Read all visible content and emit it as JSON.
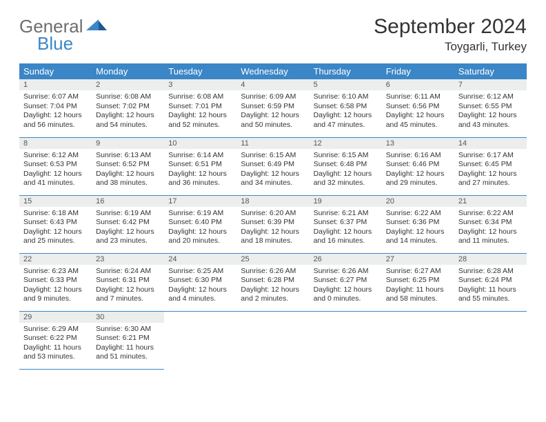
{
  "brand": {
    "word1": "General",
    "word2": "Blue"
  },
  "title": "September 2024",
  "location": "Toygarli, Turkey",
  "colors": {
    "accent": "#3b86c6",
    "header_text": "#ffffff",
    "daynum_bg": "#eceded",
    "text": "#333333",
    "logo_gray": "#6d6e71"
  },
  "typography": {
    "title_fontsize": 30,
    "location_fontsize": 17,
    "dayheader_fontsize": 13,
    "body_fontsize": 10.5
  },
  "weekdays": [
    "Sunday",
    "Monday",
    "Tuesday",
    "Wednesday",
    "Thursday",
    "Friday",
    "Saturday"
  ],
  "weeks": [
    [
      {
        "n": "1",
        "sr": "Sunrise: 6:07 AM",
        "ss": "Sunset: 7:04 PM",
        "d1": "Daylight: 12 hours",
        "d2": "and 56 minutes."
      },
      {
        "n": "2",
        "sr": "Sunrise: 6:08 AM",
        "ss": "Sunset: 7:02 PM",
        "d1": "Daylight: 12 hours",
        "d2": "and 54 minutes."
      },
      {
        "n": "3",
        "sr": "Sunrise: 6:08 AM",
        "ss": "Sunset: 7:01 PM",
        "d1": "Daylight: 12 hours",
        "d2": "and 52 minutes."
      },
      {
        "n": "4",
        "sr": "Sunrise: 6:09 AM",
        "ss": "Sunset: 6:59 PM",
        "d1": "Daylight: 12 hours",
        "d2": "and 50 minutes."
      },
      {
        "n": "5",
        "sr": "Sunrise: 6:10 AM",
        "ss": "Sunset: 6:58 PM",
        "d1": "Daylight: 12 hours",
        "d2": "and 47 minutes."
      },
      {
        "n": "6",
        "sr": "Sunrise: 6:11 AM",
        "ss": "Sunset: 6:56 PM",
        "d1": "Daylight: 12 hours",
        "d2": "and 45 minutes."
      },
      {
        "n": "7",
        "sr": "Sunrise: 6:12 AM",
        "ss": "Sunset: 6:55 PM",
        "d1": "Daylight: 12 hours",
        "d2": "and 43 minutes."
      }
    ],
    [
      {
        "n": "8",
        "sr": "Sunrise: 6:12 AM",
        "ss": "Sunset: 6:53 PM",
        "d1": "Daylight: 12 hours",
        "d2": "and 41 minutes."
      },
      {
        "n": "9",
        "sr": "Sunrise: 6:13 AM",
        "ss": "Sunset: 6:52 PM",
        "d1": "Daylight: 12 hours",
        "d2": "and 38 minutes."
      },
      {
        "n": "10",
        "sr": "Sunrise: 6:14 AM",
        "ss": "Sunset: 6:51 PM",
        "d1": "Daylight: 12 hours",
        "d2": "and 36 minutes."
      },
      {
        "n": "11",
        "sr": "Sunrise: 6:15 AM",
        "ss": "Sunset: 6:49 PM",
        "d1": "Daylight: 12 hours",
        "d2": "and 34 minutes."
      },
      {
        "n": "12",
        "sr": "Sunrise: 6:15 AM",
        "ss": "Sunset: 6:48 PM",
        "d1": "Daylight: 12 hours",
        "d2": "and 32 minutes."
      },
      {
        "n": "13",
        "sr": "Sunrise: 6:16 AM",
        "ss": "Sunset: 6:46 PM",
        "d1": "Daylight: 12 hours",
        "d2": "and 29 minutes."
      },
      {
        "n": "14",
        "sr": "Sunrise: 6:17 AM",
        "ss": "Sunset: 6:45 PM",
        "d1": "Daylight: 12 hours",
        "d2": "and 27 minutes."
      }
    ],
    [
      {
        "n": "15",
        "sr": "Sunrise: 6:18 AM",
        "ss": "Sunset: 6:43 PM",
        "d1": "Daylight: 12 hours",
        "d2": "and 25 minutes."
      },
      {
        "n": "16",
        "sr": "Sunrise: 6:19 AM",
        "ss": "Sunset: 6:42 PM",
        "d1": "Daylight: 12 hours",
        "d2": "and 23 minutes."
      },
      {
        "n": "17",
        "sr": "Sunrise: 6:19 AM",
        "ss": "Sunset: 6:40 PM",
        "d1": "Daylight: 12 hours",
        "d2": "and 20 minutes."
      },
      {
        "n": "18",
        "sr": "Sunrise: 6:20 AM",
        "ss": "Sunset: 6:39 PM",
        "d1": "Daylight: 12 hours",
        "d2": "and 18 minutes."
      },
      {
        "n": "19",
        "sr": "Sunrise: 6:21 AM",
        "ss": "Sunset: 6:37 PM",
        "d1": "Daylight: 12 hours",
        "d2": "and 16 minutes."
      },
      {
        "n": "20",
        "sr": "Sunrise: 6:22 AM",
        "ss": "Sunset: 6:36 PM",
        "d1": "Daylight: 12 hours",
        "d2": "and 14 minutes."
      },
      {
        "n": "21",
        "sr": "Sunrise: 6:22 AM",
        "ss": "Sunset: 6:34 PM",
        "d1": "Daylight: 12 hours",
        "d2": "and 11 minutes."
      }
    ],
    [
      {
        "n": "22",
        "sr": "Sunrise: 6:23 AM",
        "ss": "Sunset: 6:33 PM",
        "d1": "Daylight: 12 hours",
        "d2": "and 9 minutes."
      },
      {
        "n": "23",
        "sr": "Sunrise: 6:24 AM",
        "ss": "Sunset: 6:31 PM",
        "d1": "Daylight: 12 hours",
        "d2": "and 7 minutes."
      },
      {
        "n": "24",
        "sr": "Sunrise: 6:25 AM",
        "ss": "Sunset: 6:30 PM",
        "d1": "Daylight: 12 hours",
        "d2": "and 4 minutes."
      },
      {
        "n": "25",
        "sr": "Sunrise: 6:26 AM",
        "ss": "Sunset: 6:28 PM",
        "d1": "Daylight: 12 hours",
        "d2": "and 2 minutes."
      },
      {
        "n": "26",
        "sr": "Sunrise: 6:26 AM",
        "ss": "Sunset: 6:27 PM",
        "d1": "Daylight: 12 hours",
        "d2": "and 0 minutes."
      },
      {
        "n": "27",
        "sr": "Sunrise: 6:27 AM",
        "ss": "Sunset: 6:25 PM",
        "d1": "Daylight: 11 hours",
        "d2": "and 58 minutes."
      },
      {
        "n": "28",
        "sr": "Sunrise: 6:28 AM",
        "ss": "Sunset: 6:24 PM",
        "d1": "Daylight: 11 hours",
        "d2": "and 55 minutes."
      }
    ],
    [
      {
        "n": "29",
        "sr": "Sunrise: 6:29 AM",
        "ss": "Sunset: 6:22 PM",
        "d1": "Daylight: 11 hours",
        "d2": "and 53 minutes."
      },
      {
        "n": "30",
        "sr": "Sunrise: 6:30 AM",
        "ss": "Sunset: 6:21 PM",
        "d1": "Daylight: 11 hours",
        "d2": "and 51 minutes."
      },
      null,
      null,
      null,
      null,
      null
    ]
  ]
}
